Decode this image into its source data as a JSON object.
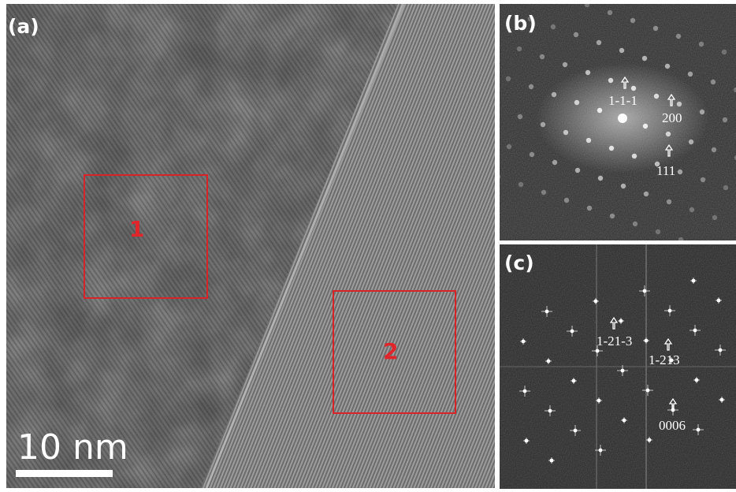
{
  "panels": [
    {
      "label": "(a)",
      "regions": [
        {
          "label": "1"
        },
        {
          "label": "2"
        }
      ],
      "scale_bar": "10 nm"
    },
    {
      "label": "(b)",
      "annotations": [
        "1-1-1",
        "200",
        "111"
      ]
    },
    {
      "label": "(c)",
      "annotations": [
        "1-21-3",
        "1-213",
        "0006"
      ]
    }
  ]
}
